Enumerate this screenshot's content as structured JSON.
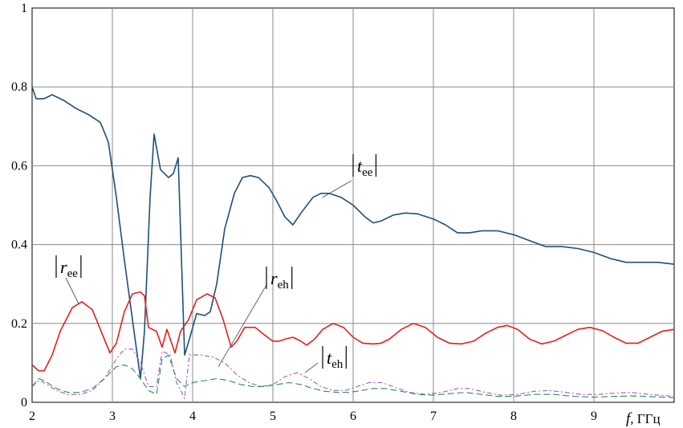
{
  "chart_data": {
    "type": "line",
    "title": "",
    "xlabel": "f, ГГц",
    "xlabel_var": "f",
    "xlabel_unit": ", ГГц",
    "ylabel": "",
    "xlim": [
      2,
      10
    ],
    "ylim": [
      0,
      1
    ],
    "xticks": [
      "2",
      "3",
      "4",
      "5",
      "6",
      "7",
      "8",
      "9"
    ],
    "yticks": [
      "0",
      "0.2",
      "0.4",
      "0.6",
      "0.8",
      "1"
    ],
    "grid": true,
    "series": [
      {
        "name": "|t_ee|",
        "color": "#1f4e79",
        "dash": "solid",
        "points": [
          [
            2.0,
            0.8
          ],
          [
            2.05,
            0.77
          ],
          [
            2.15,
            0.77
          ],
          [
            2.25,
            0.78
          ],
          [
            2.4,
            0.765
          ],
          [
            2.55,
            0.745
          ],
          [
            2.7,
            0.73
          ],
          [
            2.85,
            0.71
          ],
          [
            2.95,
            0.66
          ],
          [
            3.05,
            0.52
          ],
          [
            3.15,
            0.36
          ],
          [
            3.25,
            0.21
          ],
          [
            3.35,
            0.06
          ],
          [
            3.4,
            0.18
          ],
          [
            3.47,
            0.52
          ],
          [
            3.52,
            0.68
          ],
          [
            3.6,
            0.59
          ],
          [
            3.7,
            0.57
          ],
          [
            3.76,
            0.58
          ],
          [
            3.82,
            0.62
          ],
          [
            3.9,
            0.12
          ],
          [
            3.96,
            0.16
          ],
          [
            4.05,
            0.225
          ],
          [
            4.15,
            0.22
          ],
          [
            4.22,
            0.23
          ],
          [
            4.3,
            0.3
          ],
          [
            4.4,
            0.44
          ],
          [
            4.52,
            0.53
          ],
          [
            4.62,
            0.57
          ],
          [
            4.72,
            0.575
          ],
          [
            4.82,
            0.57
          ],
          [
            4.95,
            0.545
          ],
          [
            5.05,
            0.51
          ],
          [
            5.15,
            0.47
          ],
          [
            5.25,
            0.45
          ],
          [
            5.35,
            0.48
          ],
          [
            5.5,
            0.52
          ],
          [
            5.6,
            0.53
          ],
          [
            5.7,
            0.53
          ],
          [
            5.85,
            0.52
          ],
          [
            6.0,
            0.5
          ],
          [
            6.15,
            0.47
          ],
          [
            6.25,
            0.455
          ],
          [
            6.35,
            0.46
          ],
          [
            6.5,
            0.475
          ],
          [
            6.65,
            0.48
          ],
          [
            6.8,
            0.478
          ],
          [
            7.0,
            0.465
          ],
          [
            7.15,
            0.45
          ],
          [
            7.3,
            0.43
          ],
          [
            7.45,
            0.43
          ],
          [
            7.6,
            0.435
          ],
          [
            7.8,
            0.435
          ],
          [
            8.0,
            0.425
          ],
          [
            8.2,
            0.41
          ],
          [
            8.4,
            0.395
          ],
          [
            8.6,
            0.395
          ],
          [
            8.8,
            0.39
          ],
          [
            9.0,
            0.38
          ],
          [
            9.2,
            0.365
          ],
          [
            9.4,
            0.355
          ],
          [
            9.6,
            0.355
          ],
          [
            9.8,
            0.355
          ],
          [
            10.0,
            0.35
          ]
        ]
      },
      {
        "name": "|r_ee|",
        "color": "#e02020",
        "dash": "solid",
        "points": [
          [
            2.0,
            0.095
          ],
          [
            2.08,
            0.08
          ],
          [
            2.15,
            0.08
          ],
          [
            2.25,
            0.12
          ],
          [
            2.35,
            0.18
          ],
          [
            2.5,
            0.24
          ],
          [
            2.62,
            0.255
          ],
          [
            2.75,
            0.235
          ],
          [
            2.87,
            0.175
          ],
          [
            2.97,
            0.125
          ],
          [
            3.05,
            0.15
          ],
          [
            3.15,
            0.23
          ],
          [
            3.25,
            0.275
          ],
          [
            3.35,
            0.28
          ],
          [
            3.4,
            0.27
          ],
          [
            3.45,
            0.19
          ],
          [
            3.55,
            0.18
          ],
          [
            3.62,
            0.14
          ],
          [
            3.68,
            0.185
          ],
          [
            3.78,
            0.125
          ],
          [
            3.85,
            0.18
          ],
          [
            3.95,
            0.21
          ],
          [
            4.05,
            0.26
          ],
          [
            4.18,
            0.275
          ],
          [
            4.28,
            0.265
          ],
          [
            4.38,
            0.21
          ],
          [
            4.48,
            0.14
          ],
          [
            4.55,
            0.155
          ],
          [
            4.65,
            0.19
          ],
          [
            4.78,
            0.19
          ],
          [
            4.9,
            0.17
          ],
          [
            5.0,
            0.155
          ],
          [
            5.08,
            0.155
          ],
          [
            5.15,
            0.16
          ],
          [
            5.25,
            0.165
          ],
          [
            5.35,
            0.155
          ],
          [
            5.42,
            0.145
          ],
          [
            5.52,
            0.16
          ],
          [
            5.62,
            0.185
          ],
          [
            5.75,
            0.2
          ],
          [
            5.88,
            0.19
          ],
          [
            6.0,
            0.165
          ],
          [
            6.12,
            0.15
          ],
          [
            6.25,
            0.148
          ],
          [
            6.35,
            0.15
          ],
          [
            6.45,
            0.16
          ],
          [
            6.6,
            0.185
          ],
          [
            6.75,
            0.2
          ],
          [
            6.9,
            0.19
          ],
          [
            7.05,
            0.165
          ],
          [
            7.2,
            0.15
          ],
          [
            7.35,
            0.148
          ],
          [
            7.5,
            0.155
          ],
          [
            7.65,
            0.175
          ],
          [
            7.8,
            0.19
          ],
          [
            7.92,
            0.195
          ],
          [
            8.05,
            0.185
          ],
          [
            8.2,
            0.16
          ],
          [
            8.35,
            0.148
          ],
          [
            8.5,
            0.155
          ],
          [
            8.65,
            0.17
          ],
          [
            8.8,
            0.185
          ],
          [
            8.95,
            0.19
          ],
          [
            9.1,
            0.182
          ],
          [
            9.25,
            0.165
          ],
          [
            9.4,
            0.15
          ],
          [
            9.55,
            0.15
          ],
          [
            9.7,
            0.165
          ],
          [
            9.85,
            0.18
          ],
          [
            10.0,
            0.185
          ]
        ]
      },
      {
        "name": "|r_eh|",
        "color": "#9b59d0",
        "dash": "6,3,2,3",
        "points": [
          [
            2.0,
            0.04
          ],
          [
            2.08,
            0.055
          ],
          [
            2.15,
            0.05
          ],
          [
            2.3,
            0.03
          ],
          [
            2.45,
            0.02
          ],
          [
            2.6,
            0.02
          ],
          [
            2.75,
            0.03
          ],
          [
            2.9,
            0.06
          ],
          [
            3.05,
            0.11
          ],
          [
            3.15,
            0.135
          ],
          [
            3.25,
            0.135
          ],
          [
            3.35,
            0.1
          ],
          [
            3.45,
            0.04
          ],
          [
            3.55,
            0.04
          ],
          [
            3.62,
            0.13
          ],
          [
            3.72,
            0.12
          ],
          [
            3.8,
            0.05
          ],
          [
            3.9,
            0.01
          ],
          [
            3.96,
            0.12
          ],
          [
            4.1,
            0.12
          ],
          [
            4.25,
            0.115
          ],
          [
            4.4,
            0.1
          ],
          [
            4.55,
            0.07
          ],
          [
            4.7,
            0.05
          ],
          [
            4.85,
            0.04
          ],
          [
            5.0,
            0.045
          ],
          [
            5.15,
            0.065
          ],
          [
            5.3,
            0.075
          ],
          [
            5.45,
            0.06
          ],
          [
            5.6,
            0.04
          ],
          [
            5.75,
            0.03
          ],
          [
            5.9,
            0.03
          ],
          [
            6.05,
            0.04
          ],
          [
            6.2,
            0.05
          ],
          [
            6.35,
            0.05
          ],
          [
            6.5,
            0.04
          ],
          [
            6.7,
            0.025
          ],
          [
            6.9,
            0.02
          ],
          [
            7.1,
            0.025
          ],
          [
            7.3,
            0.035
          ],
          [
            7.45,
            0.035
          ],
          [
            7.65,
            0.025
          ],
          [
            7.85,
            0.018
          ],
          [
            8.05,
            0.02
          ],
          [
            8.25,
            0.028
          ],
          [
            8.45,
            0.03
          ],
          [
            8.65,
            0.025
          ],
          [
            8.85,
            0.02
          ],
          [
            9.05,
            0.02
          ],
          [
            9.25,
            0.023
          ],
          [
            9.45,
            0.025
          ],
          [
            9.7,
            0.02
          ],
          [
            10.0,
            0.015
          ]
        ]
      },
      {
        "name": "|t_eh|",
        "color": "#2e8b57",
        "dash": "8,4",
        "points": [
          [
            2.0,
            0.04
          ],
          [
            2.08,
            0.06
          ],
          [
            2.15,
            0.055
          ],
          [
            2.3,
            0.035
          ],
          [
            2.45,
            0.025
          ],
          [
            2.6,
            0.025
          ],
          [
            2.75,
            0.035
          ],
          [
            2.9,
            0.06
          ],
          [
            3.05,
            0.09
          ],
          [
            3.15,
            0.095
          ],
          [
            3.25,
            0.085
          ],
          [
            3.35,
            0.06
          ],
          [
            3.45,
            0.03
          ],
          [
            3.55,
            0.02
          ],
          [
            3.62,
            0.11
          ],
          [
            3.7,
            0.12
          ],
          [
            3.8,
            0.06
          ],
          [
            3.9,
            0.04
          ],
          [
            4.0,
            0.05
          ],
          [
            4.15,
            0.055
          ],
          [
            4.3,
            0.06
          ],
          [
            4.45,
            0.055
          ],
          [
            4.6,
            0.045
          ],
          [
            4.75,
            0.04
          ],
          [
            4.9,
            0.04
          ],
          [
            5.05,
            0.045
          ],
          [
            5.2,
            0.05
          ],
          [
            5.35,
            0.045
          ],
          [
            5.5,
            0.035
          ],
          [
            5.65,
            0.028
          ],
          [
            5.8,
            0.025
          ],
          [
            5.95,
            0.025
          ],
          [
            6.1,
            0.03
          ],
          [
            6.25,
            0.035
          ],
          [
            6.4,
            0.035
          ],
          [
            6.6,
            0.028
          ],
          [
            6.8,
            0.02
          ],
          [
            7.0,
            0.018
          ],
          [
            7.2,
            0.022
          ],
          [
            7.4,
            0.025
          ],
          [
            7.6,
            0.02
          ],
          [
            7.8,
            0.015
          ],
          [
            8.0,
            0.015
          ],
          [
            8.25,
            0.02
          ],
          [
            8.5,
            0.02
          ],
          [
            8.75,
            0.015
          ],
          [
            9.0,
            0.013
          ],
          [
            9.25,
            0.015
          ],
          [
            9.5,
            0.016
          ],
          [
            9.75,
            0.014
          ],
          [
            10.0,
            0.012
          ]
        ]
      }
    ],
    "annotations": [
      {
        "label_base": "t",
        "label_sub": "ee",
        "target": [
          5.62,
          0.52
        ]
      },
      {
        "label_base": "r",
        "label_sub": "ee",
        "target": [
          2.58,
          0.25
        ]
      },
      {
        "label_base": "r",
        "label_sub": "eh",
        "target": [
          4.32,
          0.09
        ]
      },
      {
        "label_base": "t",
        "label_sub": "eh",
        "target": [
          5.4,
          0.075
        ]
      }
    ]
  }
}
